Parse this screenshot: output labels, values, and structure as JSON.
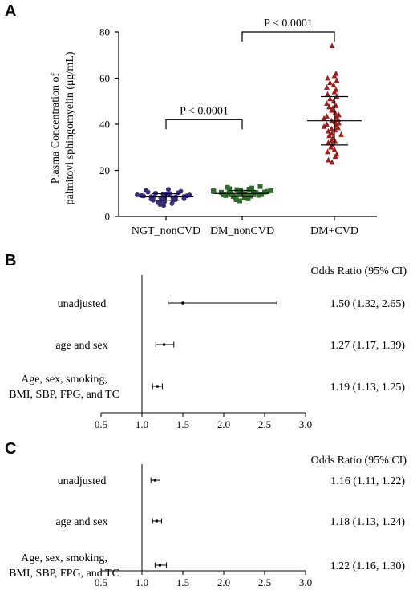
{
  "chart_data": [
    {
      "type": "scatter",
      "panel": "A",
      "ylabel_line1": "Plasma Concentration of",
      "ylabel_line2": "palmitoyl sphingomyelin (μg/mL)",
      "ylim": [
        0,
        80
      ],
      "yticks": [
        "0",
        "20",
        "40",
        "60",
        "80"
      ],
      "categories": [
        "NGT_nonCVD",
        "DM_nonCVD",
        "DM+CVD"
      ],
      "series": [
        {
          "name": "NGT_nonCVD",
          "color": "#3b2a7a",
          "marker": "circle",
          "values": [
            4.8,
            5.2,
            5.6,
            6.0,
            6.3,
            6.6,
            6.9,
            7.1,
            7.3,
            7.5,
            7.7,
            7.9,
            8.0,
            8.2,
            8.3,
            8.5,
            8.6,
            8.7,
            8.9,
            9.0,
            9.1,
            9.3,
            9.4,
            9.6,
            9.7,
            9.9,
            10.1,
            10.3,
            10.6,
            10.9,
            11.3,
            11.8
          ],
          "mean": 8.5,
          "sd": 1.4
        },
        {
          "name": "DM_nonCVD",
          "color": "#2f6b2a",
          "marker": "square",
          "values": [
            6.8,
            7.3,
            7.7,
            8.0,
            8.3,
            8.5,
            8.7,
            8.9,
            9.1,
            9.2,
            9.4,
            9.5,
            9.6,
            9.8,
            9.9,
            10.0,
            10.1,
            10.2,
            10.4,
            10.5,
            10.6,
            10.8,
            10.9,
            11.1,
            11.2,
            11.4,
            11.6,
            11.8,
            12.0,
            12.3,
            12.6,
            13.0
          ],
          "mean": 10.0,
          "sd": 1.3
        },
        {
          "name": "DM+CVD",
          "color": "#a01c1c",
          "marker": "triangle",
          "values": [
            23.5,
            24.5,
            26,
            27,
            28,
            29,
            30,
            31,
            32,
            32.5,
            33,
            34,
            35,
            35.5,
            36,
            37,
            37.5,
            38,
            38.5,
            39,
            39.5,
            40,
            40.5,
            41,
            41.5,
            42,
            42.5,
            43,
            43.5,
            44,
            45,
            46,
            47,
            47.5,
            48,
            49,
            50,
            51,
            52,
            53,
            54,
            55,
            56,
            57,
            58,
            59,
            60,
            61,
            62,
            74
          ],
          "mean": 41.5,
          "sd": 10.5
        }
      ],
      "annotations": [
        {
          "text": "P < 0.0001",
          "from": "NGT_nonCVD",
          "to": "DM_nonCVD",
          "y": 42
        },
        {
          "text": "P < 0.0001",
          "from": "DM_nonCVD",
          "to": "DM+CVD",
          "y": 80
        }
      ]
    },
    {
      "type": "forest",
      "panel": "B",
      "column_header": "Odds Ratio (95% CI)",
      "xlim": [
        0.5,
        3.0
      ],
      "xticks": [
        "0.5",
        "1.0",
        "1.5",
        "2.0",
        "2.5",
        "3.0"
      ],
      "reference": 1.0,
      "rows": [
        {
          "label": [
            "unadjusted"
          ],
          "or": 1.5,
          "lo": 1.32,
          "hi": 2.65,
          "text": "1.50 (1.32, 2.65)"
        },
        {
          "label": [
            "age and sex"
          ],
          "or": 1.27,
          "lo": 1.17,
          "hi": 1.39,
          "text": "1.27 (1.17, 1.39)"
        },
        {
          "label": [
            "Age, sex, smoking,",
            "BMI, SBP, FPG, and TC"
          ],
          "or": 1.19,
          "lo": 1.13,
          "hi": 1.25,
          "text": "1.19 (1.13, 1.25)"
        }
      ]
    },
    {
      "type": "forest",
      "panel": "C",
      "column_header": "Odds Ratio (95% CI)",
      "xlim": [
        0.5,
        3.0
      ],
      "xticks": [
        "0.5",
        "1.0",
        "1.5",
        "2.0",
        "2.5",
        "3.0"
      ],
      "reference": 1.0,
      "rows": [
        {
          "label": [
            "unadjusted"
          ],
          "or": 1.16,
          "lo": 1.11,
          "hi": 1.22,
          "text": "1.16 (1.11, 1.22)"
        },
        {
          "label": [
            "age and sex"
          ],
          "or": 1.18,
          "lo": 1.13,
          "hi": 1.24,
          "text": "1.18 (1.13, 1.24)"
        },
        {
          "label": [
            "Age, sex, smoking,",
            "BMI, SBP, FPG, and TC"
          ],
          "or": 1.22,
          "lo": 1.16,
          "hi": 1.3,
          "text": "1.22 (1.16, 1.30)"
        }
      ]
    }
  ]
}
